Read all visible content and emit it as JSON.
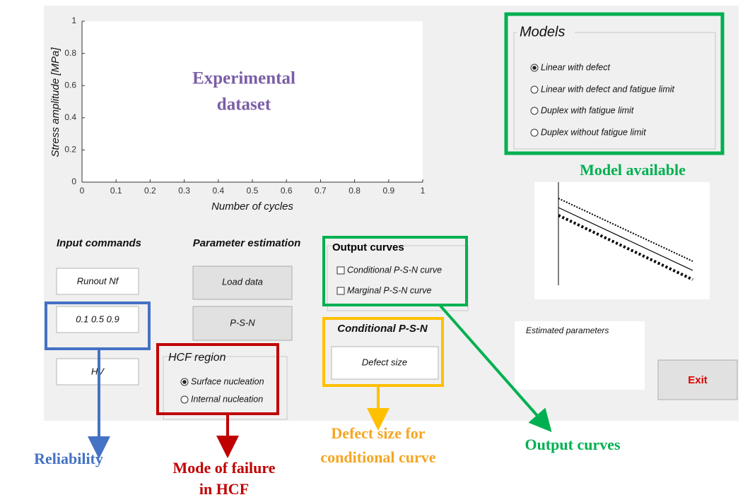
{
  "plot": {
    "overlay": [
      "Experimental",
      "dataset"
    ],
    "xlabel": "Number of cycles",
    "ylabel": "Stress amplitude [MPa]",
    "xticks": [
      0,
      0.1,
      0.2,
      0.3,
      0.4,
      0.5,
      0.6,
      0.7,
      0.8,
      0.9,
      1
    ],
    "yticks": [
      0,
      0.2,
      0.4,
      0.6,
      0.8,
      1
    ]
  },
  "models": {
    "title": "Models",
    "options": [
      "Linear with defect",
      "Linear with defect and fatigue limit",
      "Duplex with fatigue limit",
      "Duplex without fatigue limit"
    ],
    "selected": 0
  },
  "model_label": "Model available",
  "input_commands": {
    "title": "Input commands",
    "fields": [
      "Runout Nf",
      "0.1 0.5 0.9",
      "HV"
    ]
  },
  "parameter_estimation": {
    "title": "Parameter estimation",
    "buttons": [
      "Load data",
      "P-S-N"
    ]
  },
  "hcf_region": {
    "title": "HCF region",
    "options": [
      "Surface nucleation",
      "Internal nucleation"
    ],
    "selected": 0
  },
  "output_curves": {
    "title": "Output curves",
    "options": [
      "Conditional P-S-N curve",
      "Marginal P-S-N curve"
    ]
  },
  "conditional": {
    "title": "Conditional P-S-N",
    "button": "Defect size"
  },
  "estimated_parameters": "Estimated parameters",
  "exit": "Exit",
  "annotations": {
    "reliability": "Reliability",
    "mode_of_failure": [
      "Mode of failure",
      "in HCF"
    ],
    "defect_size": [
      "Defect size for",
      "conditional curve"
    ],
    "output_curves": "Output curves"
  }
}
